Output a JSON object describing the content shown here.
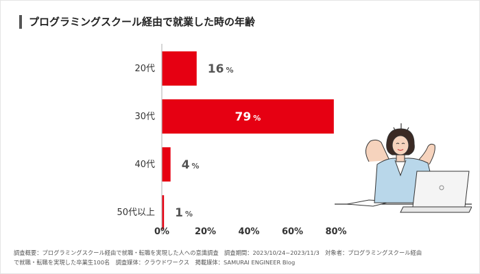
{
  "title": "プログラミングスクール経由で就業した時の年齢",
  "chart_data": {
    "type": "bar",
    "orientation": "horizontal",
    "title": "プログラミングスクール経由で就業した時の年齢",
    "categories": [
      "20代",
      "30代",
      "40代",
      "50代以上"
    ],
    "values": [
      16,
      79,
      4,
      1
    ],
    "value_labels": [
      "16",
      "79",
      "4",
      "1"
    ],
    "value_unit": "%",
    "xlim": [
      0,
      80
    ],
    "x_ticks": [
      "0%",
      "20%",
      "40%",
      "60%",
      "80%"
    ],
    "xlabel": "",
    "ylabel": "",
    "bar_color": "#e60012",
    "grid": false
  },
  "footnote": {
    "line1": "調査概要：プログラミングスクール経由で就職・転職を実現した人への意識調査　調査期間：2023/10/24~2023/11/3　対象者：プログラミングスクール経由",
    "line2": "で就職・転職を実現した卒業生100名　調査媒体：クラウドワークス　掲載媒体：SAMURAI ENGINEER Blog"
  },
  "illustration": "woman-stretching-at-laptop"
}
